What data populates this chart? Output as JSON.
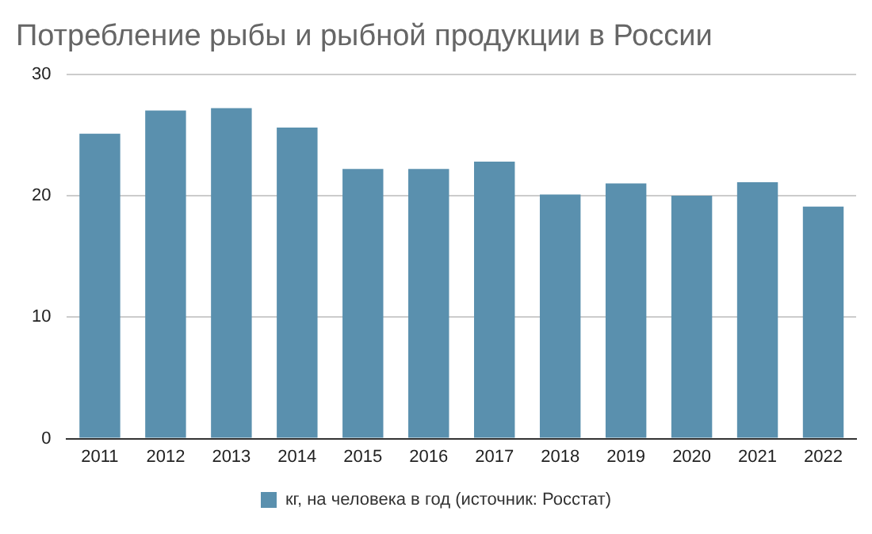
{
  "chart_data": {
    "type": "bar",
    "title": "Потребление рыбы и рыбной продукции в России",
    "categories": [
      "2011",
      "2012",
      "2013",
      "2014",
      "2015",
      "2016",
      "2017",
      "2018",
      "2019",
      "2020",
      "2021",
      "2022"
    ],
    "series": [
      {
        "name": "кг, на человека в год (источник: Росстат)",
        "color": "#5a90ae",
        "values": [
          25.1,
          27.0,
          27.2,
          25.6,
          22.2,
          22.2,
          22.8,
          20.1,
          21.0,
          20.0,
          21.1,
          19.1
        ]
      }
    ],
    "ylim": [
      0,
      30
    ],
    "yticks": [
      0,
      10,
      20,
      30
    ],
    "grid": "y",
    "legend": "bottom"
  }
}
